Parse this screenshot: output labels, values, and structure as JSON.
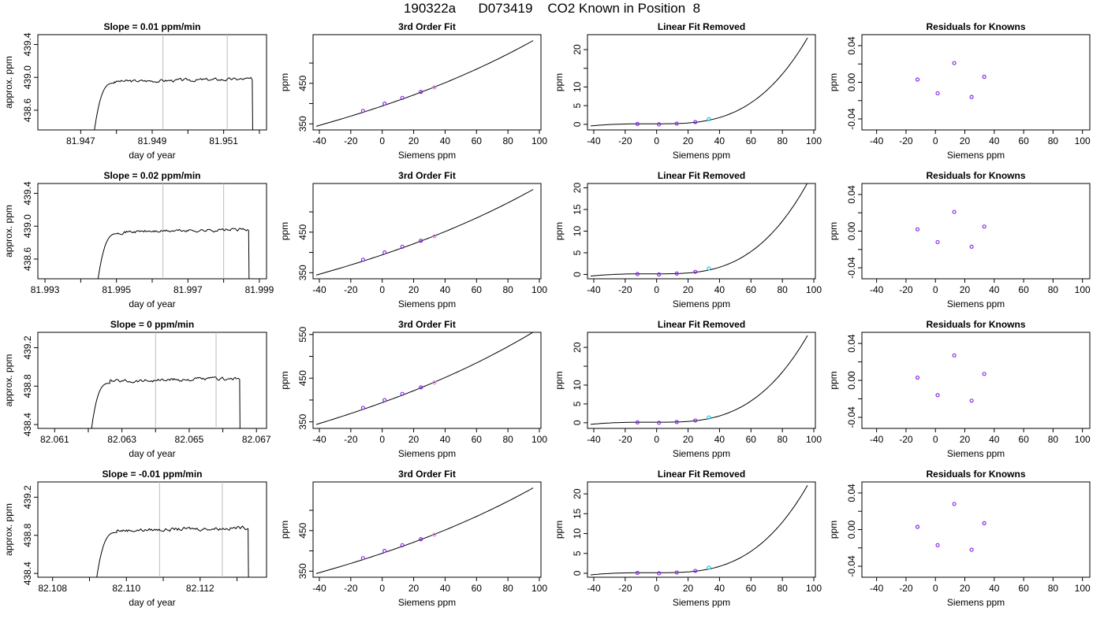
{
  "figure": {
    "title": "190322a      D073419    CO2 Known in Position  8"
  },
  "colors": {
    "frame": "#000000",
    "marker": "#8a2be2",
    "marker_alt": "#ee82ee",
    "marker_cyan": "#1ec8e6",
    "guide": "#bdbdbd"
  },
  "chart_data": [
    {
      "type": "line",
      "row": 1,
      "panel": "time",
      "title": "Slope =  0.01  ppm/min",
      "xlabel": "day of year",
      "ylabel": "approx. ppm",
      "xlim": [
        81.9458,
        81.9522
      ],
      "ylim": [
        438.36,
        439.52
      ],
      "xticks": [
        81.947,
        81.949,
        81.951
      ],
      "yticks": [
        438.6,
        439.0,
        439.4
      ],
      "minor_xticks": [
        81.948,
        81.95,
        81.952
      ],
      "vlines": [
        81.9493,
        81.9511
      ],
      "start": 81.9473,
      "plateau_start": 81.9477,
      "end": 81.9518,
      "plateau": 438.97
    },
    {
      "type": "line",
      "row": 1,
      "panel": "fit",
      "title": "3rd Order Fit",
      "xlabel": "Siemens ppm",
      "ylabel": "ppm",
      "xlim": [
        -44,
        101
      ],
      "ylim": [
        335,
        570
      ],
      "xticks": [
        -40,
        -20,
        0,
        20,
        40,
        60,
        80,
        100
      ],
      "yticks": [
        350,
        450
      ],
      "minor_yticks": [
        400,
        500
      ],
      "points_x": [
        -12.2,
        1.5,
        12.8,
        24.6,
        33.2
      ],
      "points_y": [
        382,
        400,
        414,
        429,
        440
      ],
      "fit": [
        394,
        1.3,
        0.003,
        1e-05
      ]
    },
    {
      "type": "line",
      "row": 1,
      "panel": "removed",
      "title": "Linear Fit Removed",
      "xlabel": "Siemens ppm",
      "ylabel": "ppm",
      "xlim": [
        -44,
        101
      ],
      "ylim": [
        -1.5,
        24
      ],
      "xticks": [
        -40,
        -20,
        0,
        20,
        40,
        60,
        80,
        100
      ],
      "yticks": [
        0,
        5,
        10,
        20
      ],
      "minor_yticks": [
        15
      ],
      "points_x": [
        -12.2,
        1.5,
        12.8,
        24.6,
        33.2
      ],
      "points_y": [
        0.1,
        0.0,
        0.2,
        0.6,
        1.4
      ],
      "curve_end": 23.0
    },
    {
      "type": "scatter",
      "row": 1,
      "panel": "residuals",
      "title": "Residuals for Knowns",
      "xlabel": "Siemens ppm",
      "ylabel": "ppm",
      "xlim": [
        -50,
        105
      ],
      "ylim": [
        -0.052,
        0.052
      ],
      "xticks": [
        -40,
        -20,
        0,
        20,
        40,
        60,
        80,
        100
      ],
      "yticks": [
        -0.04,
        0.0,
        0.04
      ],
      "minor_yticks": [
        -0.02,
        0.02
      ],
      "points_x": [
        -12.2,
        1.5,
        12.8,
        24.6,
        33.2
      ],
      "points_y": [
        0.003,
        -0.012,
        0.021,
        -0.016,
        0.006
      ]
    },
    {
      "type": "line",
      "row": 2,
      "panel": "time",
      "title": "Slope =  0.02  ppm/min",
      "xlabel": "day of year",
      "ylabel": "approx. ppm",
      "xlim": [
        81.9928,
        81.9992
      ],
      "ylim": [
        438.36,
        439.52
      ],
      "xticks": [
        81.993,
        81.995,
        81.997,
        81.999
      ],
      "yticks": [
        438.6,
        439.0,
        439.4
      ],
      "minor_xticks": [
        81.994,
        81.996,
        81.998
      ],
      "vlines": [
        81.9963,
        81.998
      ],
      "start": 81.9944,
      "plateau_start": 81.9948,
      "end": 81.9987,
      "plateau": 438.95
    },
    {
      "type": "line",
      "row": 2,
      "panel": "fit",
      "title": "3rd Order Fit",
      "xlabel": "Siemens ppm",
      "ylabel": "ppm",
      "xlim": [
        -44,
        101
      ],
      "ylim": [
        335,
        570
      ],
      "xticks": [
        -40,
        -20,
        0,
        20,
        40,
        60,
        80,
        100
      ],
      "yticks": [
        350,
        450
      ],
      "minor_yticks": [
        400,
        500
      ],
      "points_x": [
        -12.2,
        1.5,
        12.8,
        24.6,
        33.2
      ],
      "points_y": [
        382,
        400,
        414,
        429,
        440
      ],
      "fit": [
        394,
        1.3,
        0.003,
        1e-05
      ]
    },
    {
      "type": "line",
      "row": 2,
      "panel": "removed",
      "title": "Linear Fit Removed",
      "xlabel": "Siemens ppm",
      "ylabel": "ppm",
      "xlim": [
        -44,
        101
      ],
      "ylim": [
        -1,
        21
      ],
      "xticks": [
        -40,
        -20,
        0,
        20,
        40,
        60,
        80,
        100
      ],
      "yticks": [
        0,
        5,
        10,
        15,
        20
      ],
      "minor_yticks": [],
      "points_x": [
        -12.2,
        1.5,
        12.8,
        24.6,
        33.2
      ],
      "points_y": [
        0.1,
        0.0,
        0.2,
        0.6,
        1.4
      ],
      "curve_end": 21.0
    },
    {
      "type": "scatter",
      "row": 2,
      "panel": "residuals",
      "title": "Residuals for Knowns",
      "xlabel": "Siemens ppm",
      "ylabel": "ppm",
      "xlim": [
        -50,
        105
      ],
      "ylim": [
        -0.052,
        0.052
      ],
      "xticks": [
        -40,
        -20,
        0,
        20,
        40,
        60,
        80,
        100
      ],
      "yticks": [
        -0.04,
        0.0,
        0.04
      ],
      "minor_yticks": [
        -0.02,
        0.02
      ],
      "points_x": [
        -12.2,
        1.5,
        12.8,
        24.6,
        33.2
      ],
      "points_y": [
        0.002,
        -0.012,
        0.021,
        -0.017,
        0.005
      ]
    },
    {
      "type": "line",
      "row": 3,
      "panel": "time",
      "title": "Slope =  0  ppm/min",
      "xlabel": "day of year",
      "ylabel": "approx. ppm",
      "xlim": [
        82.0605,
        82.0673
      ],
      "ylim": [
        438.36,
        439.36
      ],
      "xticks": [
        82.061,
        82.063,
        82.065,
        82.067
      ],
      "yticks": [
        438.4,
        438.8,
        439.2
      ],
      "minor_xticks": [
        82.062,
        82.064,
        82.066
      ],
      "vlines": [
        82.064,
        82.0658
      ],
      "start": 82.062,
      "plateau_start": 82.0624,
      "end": 82.0665,
      "plateau": 438.87
    },
    {
      "type": "line",
      "row": 3,
      "panel": "fit",
      "title": "3rd Order Fit",
      "xlabel": "Siemens ppm",
      "ylabel": "ppm",
      "xlim": [
        -44,
        101
      ],
      "ylim": [
        335,
        555
      ],
      "xticks": [
        -40,
        -20,
        0,
        20,
        40,
        60,
        80,
        100
      ],
      "yticks": [
        350,
        450,
        550
      ],
      "minor_yticks": [
        400,
        500
      ],
      "points_x": [
        -12.2,
        1.5,
        12.8,
        24.6,
        33.2
      ],
      "points_y": [
        382,
        400,
        414,
        429,
        440
      ],
      "fit": [
        394,
        1.3,
        0.003,
        1e-05
      ]
    },
    {
      "type": "line",
      "row": 3,
      "panel": "removed",
      "title": "Linear Fit Removed",
      "xlabel": "Siemens ppm",
      "ylabel": "ppm",
      "xlim": [
        -44,
        101
      ],
      "ylim": [
        -1.5,
        24
      ],
      "xticks": [
        -40,
        -20,
        0,
        20,
        40,
        60,
        80,
        100
      ],
      "yticks": [
        0,
        5,
        10,
        20
      ],
      "minor_yticks": [
        15
      ],
      "points_x": [
        -12.2,
        1.5,
        12.8,
        24.6,
        33.2
      ],
      "points_y": [
        0.1,
        0.0,
        0.2,
        0.6,
        1.4
      ],
      "curve_end": 23.0
    },
    {
      "type": "scatter",
      "row": 3,
      "panel": "residuals",
      "title": "Residuals for Knowns",
      "xlabel": "Siemens ppm",
      "ylabel": "ppm",
      "xlim": [
        -50,
        105
      ],
      "ylim": [
        -0.052,
        0.052
      ],
      "xticks": [
        -40,
        -20,
        0,
        20,
        40,
        60,
        80,
        100
      ],
      "yticks": [
        -0.04,
        0.0,
        0.04
      ],
      "minor_yticks": [
        -0.02,
        0.02
      ],
      "points_x": [
        -12.2,
        1.5,
        12.8,
        24.6,
        33.2
      ],
      "points_y": [
        0.003,
        -0.016,
        0.027,
        -0.022,
        0.007
      ]
    },
    {
      "type": "line",
      "row": 4,
      "panel": "time",
      "title": "Slope =  -0.01  ppm/min",
      "xlabel": "day of year",
      "ylabel": "approx. ppm",
      "xlim": [
        82.1076,
        82.1138
      ],
      "ylim": [
        438.36,
        439.36
      ],
      "xticks": [
        82.108,
        82.11,
        82.112
      ],
      "yticks": [
        438.4,
        438.8,
        439.2
      ],
      "minor_xticks": [
        82.109,
        82.111,
        82.113
      ],
      "vlines": [
        82.1109,
        82.1126
      ],
      "start": 82.1091,
      "plateau_start": 82.1095,
      "end": 82.1133,
      "plateau": 438.87
    },
    {
      "type": "line",
      "row": 4,
      "panel": "fit",
      "title": "3rd Order Fit",
      "xlabel": "Siemens ppm",
      "ylabel": "ppm",
      "xlim": [
        -44,
        101
      ],
      "ylim": [
        335,
        570
      ],
      "xticks": [
        -40,
        -20,
        0,
        20,
        40,
        60,
        80,
        100
      ],
      "yticks": [
        350,
        450
      ],
      "minor_yticks": [
        400,
        500
      ],
      "points_x": [
        -12.2,
        1.5,
        12.8,
        24.6,
        33.2
      ],
      "points_y": [
        382,
        400,
        414,
        429,
        440
      ],
      "fit": [
        394,
        1.3,
        0.003,
        1e-05
      ]
    },
    {
      "type": "line",
      "row": 4,
      "panel": "removed",
      "title": "Linear Fit Removed",
      "xlabel": "Siemens ppm",
      "ylabel": "ppm",
      "xlim": [
        -44,
        101
      ],
      "ylim": [
        -1,
        23
      ],
      "xticks": [
        -40,
        -20,
        0,
        20,
        40,
        60,
        80,
        100
      ],
      "yticks": [
        0,
        5,
        10,
        15,
        20
      ],
      "minor_yticks": [],
      "points_x": [
        -12.2,
        1.5,
        12.8,
        24.6,
        33.2
      ],
      "points_y": [
        0.1,
        0.0,
        0.2,
        0.6,
        1.4
      ],
      "curve_end": 22.0
    },
    {
      "type": "scatter",
      "row": 4,
      "panel": "residuals",
      "title": "Residuals for Knowns",
      "xlabel": "Siemens ppm",
      "ylabel": "ppm",
      "xlim": [
        -50,
        105
      ],
      "ylim": [
        -0.052,
        0.052
      ],
      "xticks": [
        -40,
        -20,
        0,
        20,
        40,
        60,
        80,
        100
      ],
      "yticks": [
        -0.04,
        0.0,
        0.04
      ],
      "minor_yticks": [
        -0.02,
        0.02
      ],
      "points_x": [
        -12.2,
        1.5,
        12.8,
        24.6,
        33.2
      ],
      "points_y": [
        0.003,
        -0.017,
        0.028,
        -0.022,
        0.007
      ]
    }
  ]
}
